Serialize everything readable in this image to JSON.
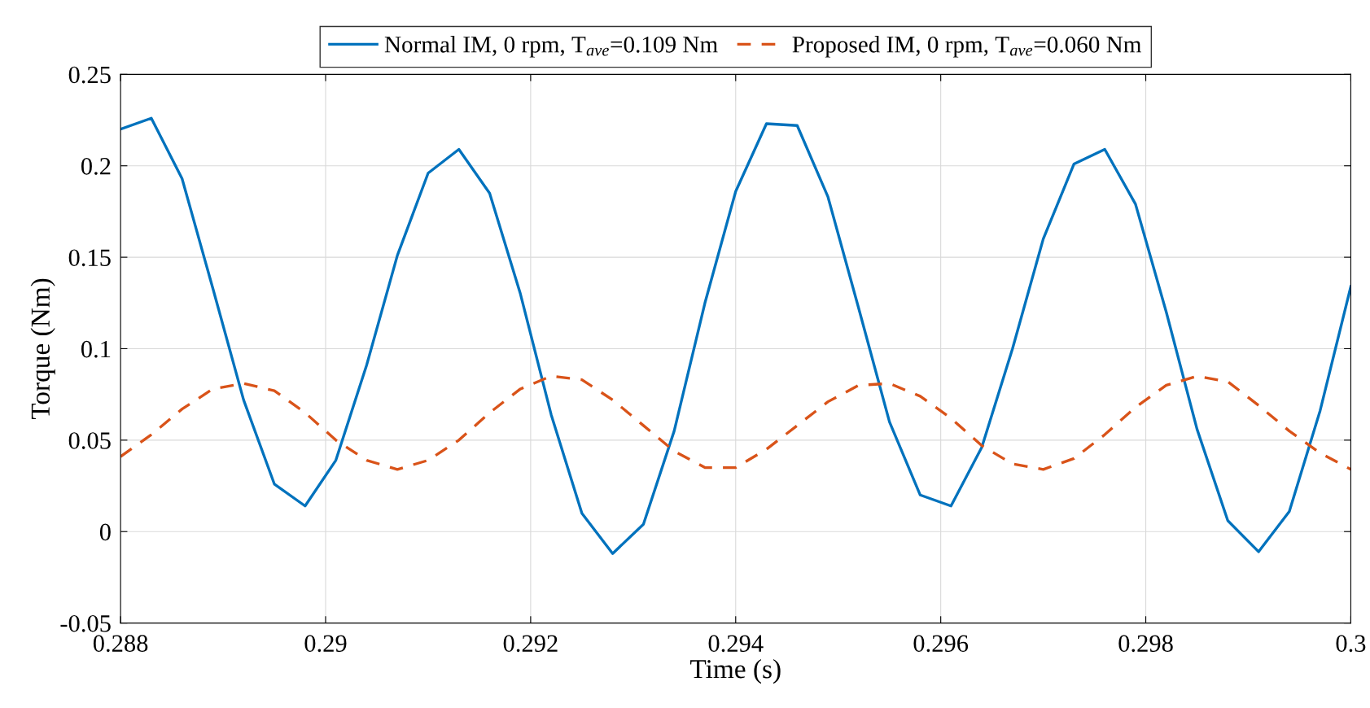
{
  "chart_data": {
    "type": "line",
    "xlabel": "Time (s)",
    "ylabel": "Torque (Nm)",
    "x": [
      0.288,
      0.2883,
      0.2886,
      0.2889,
      0.2892,
      0.2895,
      0.2898,
      0.2901,
      0.2904,
      0.2907,
      0.291,
      0.2913,
      0.2916,
      0.2919,
      0.2922,
      0.2925,
      0.2928,
      0.2931,
      0.2934,
      0.2937,
      0.294,
      0.2943,
      0.2946,
      0.2949,
      0.2952,
      0.2955,
      0.2958,
      0.2961,
      0.2964,
      0.2967,
      0.297,
      0.2973,
      0.2976,
      0.2979,
      0.2982,
      0.2985,
      0.2988,
      0.2991,
      0.2994,
      0.2997,
      0.3
    ],
    "series": [
      {
        "name": "Normal IM, 0 rpm, T$_{ave}$=0.109 Nm",
        "color": "#0072bd",
        "line_style": "solid",
        "values": [
          0.22,
          0.226,
          0.193,
          0.133,
          0.072,
          0.026,
          0.014,
          0.039,
          0.091,
          0.151,
          0.196,
          0.209,
          0.185,
          0.13,
          0.064,
          0.01,
          -0.012,
          0.004,
          0.055,
          0.125,
          0.186,
          0.223,
          0.222,
          0.183,
          0.122,
          0.06,
          0.02,
          0.014,
          0.046,
          0.1,
          0.16,
          0.201,
          0.209,
          0.179,
          0.12,
          0.056,
          0.006,
          -0.011,
          0.011,
          0.066,
          0.134
        ]
      },
      {
        "name": "Proposed IM, 0 rpm, T$_{ave}$=0.060 Nm",
        "color": "#d95319",
        "line_style": "dashed",
        "values": [
          0.041,
          0.053,
          0.067,
          0.078,
          0.081,
          0.077,
          0.065,
          0.05,
          0.039,
          0.034,
          0.039,
          0.05,
          0.065,
          0.078,
          0.085,
          0.083,
          0.072,
          0.058,
          0.044,
          0.035,
          0.035,
          0.045,
          0.058,
          0.071,
          0.08,
          0.081,
          0.074,
          0.062,
          0.047,
          0.037,
          0.034,
          0.04,
          0.053,
          0.068,
          0.08,
          0.085,
          0.082,
          0.069,
          0.055,
          0.043,
          0.034
        ]
      }
    ],
    "xlim": [
      0.288,
      0.3
    ],
    "xticks": [
      0.288,
      0.29,
      0.292,
      0.294,
      0.296,
      0.298,
      0.3
    ],
    "ylim": [
      -0.05,
      0.25
    ],
    "yticks": [
      {
        "value": -0.05,
        "label": "-0.05"
      },
      0,
      0.05,
      0.1,
      0.15,
      0.2,
      0.25
    ],
    "grid": true,
    "legend": "top",
    "marker": "none"
  }
}
